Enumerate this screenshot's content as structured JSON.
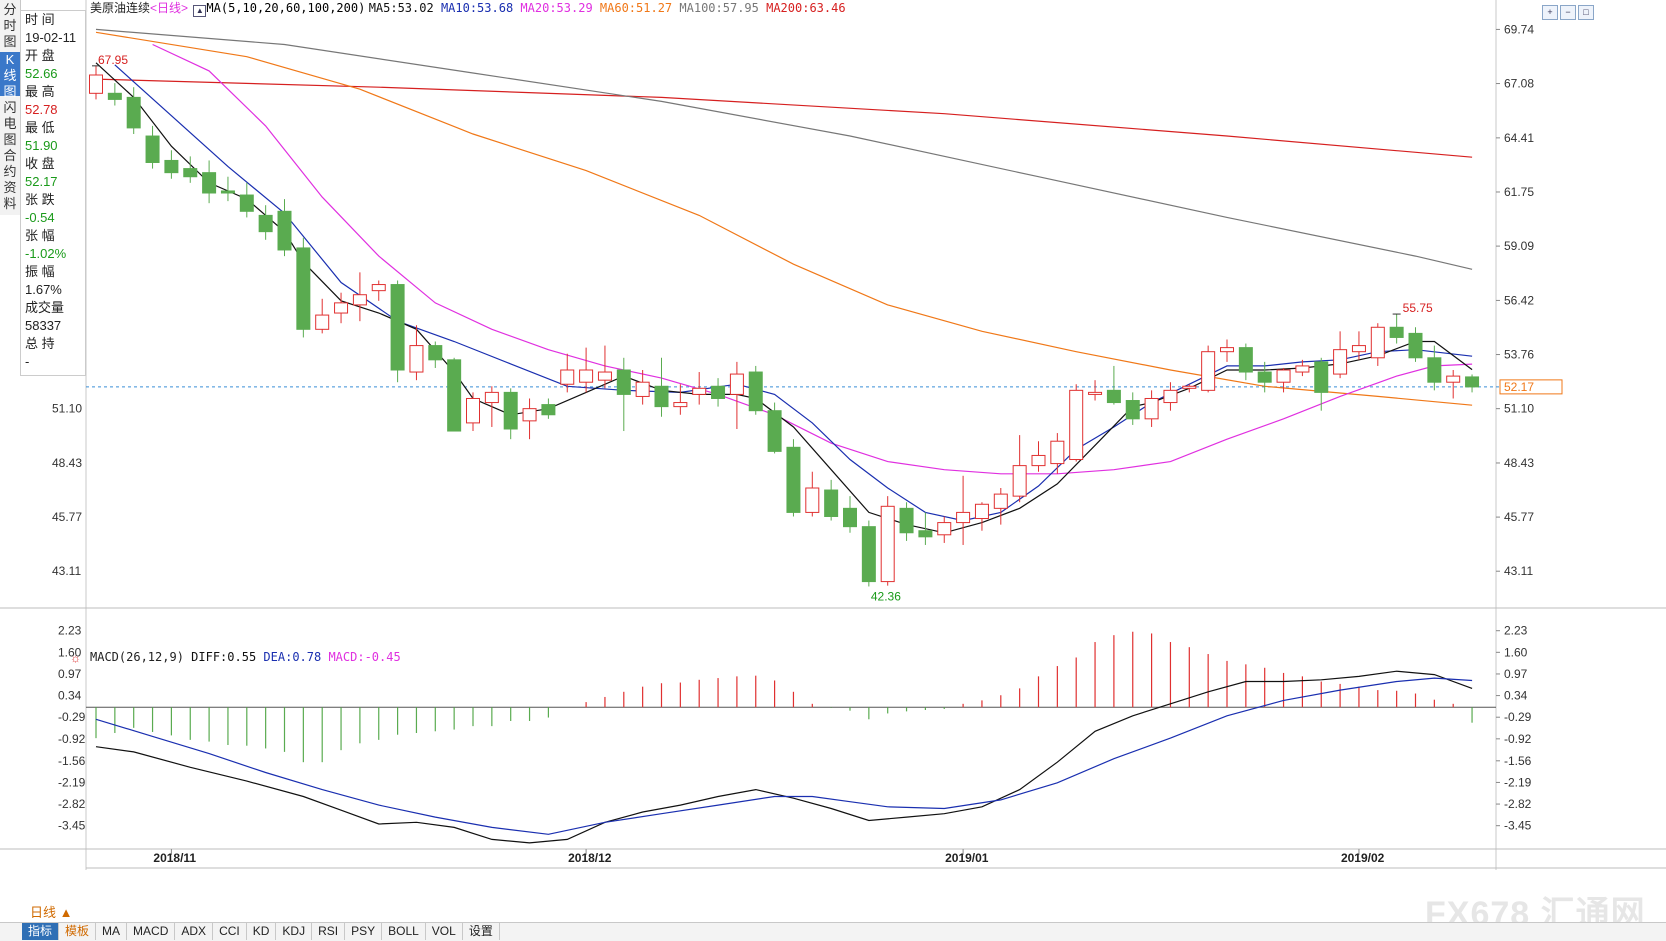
{
  "left_tabs": [
    "分时图",
    "K线图",
    "闪电图",
    "合约资料"
  ],
  "info_panel": [
    {
      "label": "时 间",
      "value": "19-02-11",
      "value_color": "#222222"
    },
    {
      "label": "开 盘",
      "value": "52.66",
      "value_color": "#1a9a1a"
    },
    {
      "label": "最 高",
      "value": "52.78",
      "value_color": "#d62020"
    },
    {
      "label": "最 低",
      "value": "51.90",
      "value_color": "#1a9a1a"
    },
    {
      "label": "收 盘",
      "value": "52.17",
      "value_color": "#1a9a1a"
    },
    {
      "label": "张 跌",
      "value": "-0.54",
      "value_color": "#1a9a1a"
    },
    {
      "label": "张 幅",
      "value": "-1.02%",
      "value_color": "#1a9a1a"
    },
    {
      "label": "振 幅",
      "value": "1.67%",
      "value_color": "#222222"
    },
    {
      "label": "成交量",
      "value": "58337",
      "value_color": "#222222"
    },
    {
      "label": "总 持",
      "value": "-",
      "value_color": "#222222"
    }
  ],
  "header": {
    "symbol": "美原油连续",
    "period": "<日线>",
    "ma_params": "MA(5,10,20,60,100,200)",
    "ma_values": [
      {
        "label": "MA5:53.02",
        "color": "#111111"
      },
      {
        "label": "MA10:53.68",
        "color": "#1a2fb0"
      },
      {
        "label": "MA20:53.29",
        "color": "#e030e0"
      },
      {
        "label": "MA60:51.27",
        "color": "#f07818"
      },
      {
        "label": "MA100:57.95",
        "color": "#777777"
      },
      {
        "label": "MA200:63.46",
        "color": "#d62020"
      }
    ]
  },
  "macd_header": {
    "params": "MACD(26,12,9)",
    "diff": "DIFF:0.55",
    "dea": "DEA:0.78",
    "macd": "MACD:-0.45"
  },
  "colors": {
    "up": "#e03030",
    "down": "#5aab50",
    "ma5": "#111111",
    "ma10": "#1a2fb0",
    "ma20": "#e030e0",
    "ma60": "#f07818",
    "ma100": "#777777",
    "ma200": "#d62020",
    "diff": "#111111",
    "dea": "#1a2fb0",
    "price_line": "#3a8fd8"
  },
  "chart_data": {
    "type": "candlestick",
    "y_axis_ticks": [
      "69.74",
      "67.08",
      "64.41",
      "61.75",
      "59.09",
      "56.42",
      "53.76",
      "51.10",
      "48.43",
      "45.77",
      "43.11"
    ],
    "ylim": [
      41.4,
      70.4
    ],
    "x_month_labels": [
      {
        "label": "2018/11",
        "index": 4
      },
      {
        "label": "2018/12",
        "index": 26
      },
      {
        "label": "2019/01",
        "index": 46
      },
      {
        "label": "2019/02",
        "index": 67
      }
    ],
    "candles": [
      {
        "o": 66.6,
        "h": 67.95,
        "l": 66.3,
        "c": 67.5
      },
      {
        "o": 66.6,
        "h": 67.1,
        "l": 66.0,
        "c": 66.3
      },
      {
        "o": 66.4,
        "h": 66.9,
        "l": 64.6,
        "c": 64.9
      },
      {
        "o": 64.5,
        "h": 65.0,
        "l": 62.9,
        "c": 63.2
      },
      {
        "o": 63.3,
        "h": 63.8,
        "l": 62.4,
        "c": 62.7
      },
      {
        "o": 62.9,
        "h": 63.5,
        "l": 62.2,
        "c": 62.5
      },
      {
        "o": 62.7,
        "h": 63.3,
        "l": 61.2,
        "c": 61.7
      },
      {
        "o": 61.8,
        "h": 62.5,
        "l": 61.3,
        "c": 61.7
      },
      {
        "o": 61.6,
        "h": 62.2,
        "l": 60.5,
        "c": 60.8
      },
      {
        "o": 60.6,
        "h": 61.1,
        "l": 59.4,
        "c": 59.8
      },
      {
        "o": 60.8,
        "h": 61.4,
        "l": 58.6,
        "c": 58.9
      },
      {
        "o": 59.0,
        "h": 59.5,
        "l": 54.6,
        "c": 55.0
      },
      {
        "o": 55.0,
        "h": 56.5,
        "l": 54.8,
        "c": 55.7
      },
      {
        "o": 55.8,
        "h": 56.8,
        "l": 55.3,
        "c": 56.3
      },
      {
        "o": 56.2,
        "h": 57.8,
        "l": 55.4,
        "c": 56.7
      },
      {
        "o": 56.9,
        "h": 57.4,
        "l": 56.4,
        "c": 57.2
      },
      {
        "o": 57.2,
        "h": 57.4,
        "l": 52.4,
        "c": 53.0
      },
      {
        "o": 52.9,
        "h": 55.2,
        "l": 52.5,
        "c": 54.2
      },
      {
        "o": 54.2,
        "h": 54.4,
        "l": 53.1,
        "c": 53.5
      },
      {
        "o": 53.5,
        "h": 53.6,
        "l": 50.0,
        "c": 50.0
      },
      {
        "o": 50.4,
        "h": 51.9,
        "l": 50.0,
        "c": 51.6
      },
      {
        "o": 51.4,
        "h": 52.2,
        "l": 50.2,
        "c": 51.9
      },
      {
        "o": 51.9,
        "h": 52.1,
        "l": 49.6,
        "c": 50.1
      },
      {
        "o": 50.5,
        "h": 51.6,
        "l": 49.6,
        "c": 51.1
      },
      {
        "o": 51.3,
        "h": 51.6,
        "l": 50.6,
        "c": 50.8
      },
      {
        "o": 52.3,
        "h": 53.8,
        "l": 51.9,
        "c": 53.0
      },
      {
        "o": 52.4,
        "h": 54.1,
        "l": 51.9,
        "c": 53.0
      },
      {
        "o": 52.5,
        "h": 54.2,
        "l": 52.1,
        "c": 52.9
      },
      {
        "o": 53.0,
        "h": 53.6,
        "l": 50.0,
        "c": 51.8
      },
      {
        "o": 51.7,
        "h": 53.0,
        "l": 51.3,
        "c": 52.4
      },
      {
        "o": 52.2,
        "h": 53.6,
        "l": 50.7,
        "c": 51.2
      },
      {
        "o": 51.2,
        "h": 52.3,
        "l": 50.8,
        "c": 51.4
      },
      {
        "o": 51.8,
        "h": 52.9,
        "l": 51.3,
        "c": 52.1
      },
      {
        "o": 52.2,
        "h": 52.6,
        "l": 51.2,
        "c": 51.6
      },
      {
        "o": 51.8,
        "h": 53.4,
        "l": 50.1,
        "c": 52.8
      },
      {
        "o": 52.9,
        "h": 53.2,
        "l": 50.8,
        "c": 51.0
      },
      {
        "o": 51.0,
        "h": 51.4,
        "l": 48.9,
        "c": 49.0
      },
      {
        "o": 49.2,
        "h": 49.6,
        "l": 45.8,
        "c": 46.0
      },
      {
        "o": 46.0,
        "h": 48.0,
        "l": 45.8,
        "c": 47.2
      },
      {
        "o": 47.1,
        "h": 47.6,
        "l": 45.6,
        "c": 45.8
      },
      {
        "o": 46.2,
        "h": 46.8,
        "l": 45.0,
        "c": 45.3
      },
      {
        "o": 45.3,
        "h": 45.6,
        "l": 42.36,
        "c": 42.6
      },
      {
        "o": 42.6,
        "h": 46.8,
        "l": 42.4,
        "c": 46.3
      },
      {
        "o": 46.2,
        "h": 46.5,
        "l": 44.6,
        "c": 45.0
      },
      {
        "o": 45.1,
        "h": 46.0,
        "l": 44.4,
        "c": 44.8
      },
      {
        "o": 44.9,
        "h": 45.8,
        "l": 44.5,
        "c": 45.5
      },
      {
        "o": 45.5,
        "h": 47.8,
        "l": 44.4,
        "c": 46.0
      },
      {
        "o": 45.7,
        "h": 46.5,
        "l": 45.1,
        "c": 46.4
      },
      {
        "o": 46.2,
        "h": 47.2,
        "l": 45.4,
        "c": 46.9
      },
      {
        "o": 46.8,
        "h": 49.8,
        "l": 46.5,
        "c": 48.3
      },
      {
        "o": 48.3,
        "h": 49.5,
        "l": 48.0,
        "c": 48.8
      },
      {
        "o": 48.4,
        "h": 49.9,
        "l": 47.9,
        "c": 49.5
      },
      {
        "o": 48.6,
        "h": 52.3,
        "l": 48.5,
        "c": 52.0
      },
      {
        "o": 51.8,
        "h": 52.5,
        "l": 51.5,
        "c": 51.9
      },
      {
        "o": 52.0,
        "h": 53.2,
        "l": 51.3,
        "c": 51.4
      },
      {
        "o": 51.5,
        "h": 51.9,
        "l": 50.3,
        "c": 50.6
      },
      {
        "o": 50.6,
        "h": 52.0,
        "l": 50.2,
        "c": 51.6
      },
      {
        "o": 51.4,
        "h": 52.4,
        "l": 51.0,
        "c": 52.0
      },
      {
        "o": 52.1,
        "h": 52.3,
        "l": 51.9,
        "c": 52.2
      },
      {
        "o": 52.0,
        "h": 54.2,
        "l": 51.9,
        "c": 53.9
      },
      {
        "o": 53.9,
        "h": 54.5,
        "l": 53.4,
        "c": 54.1
      },
      {
        "o": 54.1,
        "h": 54.3,
        "l": 52.5,
        "c": 52.9
      },
      {
        "o": 52.9,
        "h": 53.4,
        "l": 51.9,
        "c": 52.4
      },
      {
        "o": 52.4,
        "h": 53.1,
        "l": 51.9,
        "c": 53.0
      },
      {
        "o": 52.9,
        "h": 53.5,
        "l": 52.7,
        "c": 53.2
      },
      {
        "o": 53.4,
        "h": 53.6,
        "l": 51.0,
        "c": 51.9
      },
      {
        "o": 52.8,
        "h": 54.9,
        "l": 52.6,
        "c": 54.0
      },
      {
        "o": 53.9,
        "h": 54.9,
        "l": 53.5,
        "c": 54.2
      },
      {
        "o": 53.6,
        "h": 55.3,
        "l": 53.2,
        "c": 55.1
      },
      {
        "o": 55.1,
        "h": 55.75,
        "l": 54.3,
        "c": 54.6
      },
      {
        "o": 54.8,
        "h": 55.1,
        "l": 53.4,
        "c": 53.6
      },
      {
        "o": 53.6,
        "h": 54.2,
        "l": 52.0,
        "c": 52.4
      },
      {
        "o": 52.4,
        "h": 53.0,
        "l": 51.6,
        "c": 52.7
      },
      {
        "o": 52.66,
        "h": 52.78,
        "l": 51.9,
        "c": 52.17
      }
    ],
    "high_label": {
      "text": "67.95",
      "index": 0,
      "value": 67.95
    },
    "low_label": {
      "text": "42.36",
      "index": 41,
      "value": 42.36
    },
    "high_label_2": {
      "text": "55.75",
      "index": 69,
      "value": 55.75
    },
    "last_price": "52.17",
    "ma100_points": [
      [
        0,
        69.74
      ],
      [
        10,
        69.0
      ],
      [
        20,
        67.6
      ],
      [
        30,
        66.2
      ],
      [
        40,
        64.5
      ],
      [
        50,
        62.5
      ],
      [
        60,
        60.5
      ],
      [
        70,
        58.6
      ],
      [
        73,
        57.95
      ]
    ],
    "ma200_points": [
      [
        0,
        67.3
      ],
      [
        15,
        66.9
      ],
      [
        30,
        66.4
      ],
      [
        45,
        65.6
      ],
      [
        60,
        64.5
      ],
      [
        73,
        63.46
      ]
    ],
    "ma60_points": [
      [
        0,
        69.6
      ],
      [
        8,
        68.4
      ],
      [
        14,
        66.8
      ],
      [
        20,
        64.6
      ],
      [
        26,
        62.8
      ],
      [
        32,
        60.6
      ],
      [
        37,
        58.2
      ],
      [
        42,
        56.2
      ],
      [
        47,
        54.9
      ],
      [
        52,
        53.9
      ],
      [
        57,
        53.0
      ],
      [
        62,
        52.2
      ],
      [
        68,
        51.7
      ],
      [
        73,
        51.27
      ]
    ],
    "ma20_points": [
      [
        3,
        69.0
      ],
      [
        6,
        67.7
      ],
      [
        9,
        65.0
      ],
      [
        12,
        61.5
      ],
      [
        15,
        58.6
      ],
      [
        18,
        56.3
      ],
      [
        21,
        55.0
      ],
      [
        24,
        54.0
      ],
      [
        27,
        53.2
      ],
      [
        30,
        52.6
      ],
      [
        33,
        51.8
      ],
      [
        36,
        50.8
      ],
      [
        39,
        49.4
      ],
      [
        42,
        48.5
      ],
      [
        45,
        48.1
      ],
      [
        48,
        47.9
      ],
      [
        51,
        47.9
      ],
      [
        54,
        48.1
      ],
      [
        57,
        48.5
      ],
      [
        60,
        49.6
      ],
      [
        63,
        50.6
      ],
      [
        66,
        51.7
      ],
      [
        69,
        52.7
      ],
      [
        71,
        53.2
      ],
      [
        73,
        53.29
      ]
    ],
    "ma10_points": [
      [
        1,
        68.0
      ],
      [
        4,
        65.5
      ],
      [
        7,
        63.0
      ],
      [
        10,
        60.7
      ],
      [
        13,
        57.3
      ],
      [
        16,
        55.4
      ],
      [
        19,
        54.4
      ],
      [
        22,
        53.3
      ],
      [
        25,
        52.2
      ],
      [
        28,
        52.0
      ],
      [
        31,
        51.9
      ],
      [
        34,
        52.3
      ],
      [
        36,
        51.8
      ],
      [
        38,
        50.4
      ],
      [
        40,
        48.6
      ],
      [
        42,
        47.2
      ],
      [
        44,
        46.0
      ],
      [
        46,
        45.6
      ],
      [
        48,
        46.0
      ],
      [
        50,
        47.3
      ],
      [
        52,
        49.1
      ],
      [
        54,
        50.2
      ],
      [
        56,
        51.4
      ],
      [
        58,
        52.3
      ],
      [
        60,
        53.2
      ],
      [
        62,
        53.2
      ],
      [
        64,
        53.4
      ],
      [
        66,
        53.5
      ],
      [
        68,
        53.9
      ],
      [
        70,
        54.0
      ],
      [
        73,
        53.68
      ]
    ],
    "ma5_points": [
      [
        0,
        68.1
      ],
      [
        2,
        66.4
      ],
      [
        4,
        64.0
      ],
      [
        6,
        62.2
      ],
      [
        8,
        61.4
      ],
      [
        10,
        59.8
      ],
      [
        11,
        58.3
      ],
      [
        13,
        56.4
      ],
      [
        15,
        55.8
      ],
      [
        17,
        55.0
      ],
      [
        19,
        52.9
      ],
      [
        20,
        51.6
      ],
      [
        22,
        50.8
      ],
      [
        24,
        51.1
      ],
      [
        26,
        51.9
      ],
      [
        28,
        52.7
      ],
      [
        30,
        52.0
      ],
      [
        32,
        51.8
      ],
      [
        34,
        51.8
      ],
      [
        35,
        51.6
      ],
      [
        37,
        50.2
      ],
      [
        39,
        48.1
      ],
      [
        41,
        46.0
      ],
      [
        43,
        45.4
      ],
      [
        45,
        45.0
      ],
      [
        47,
        45.5
      ],
      [
        49,
        46.2
      ],
      [
        51,
        47.4
      ],
      [
        53,
        49.3
      ],
      [
        55,
        51.2
      ],
      [
        56,
        51.4
      ],
      [
        58,
        52.1
      ],
      [
        60,
        53.0
      ],
      [
        62,
        53.0
      ],
      [
        64,
        53.1
      ],
      [
        66,
        53.3
      ],
      [
        68,
        53.7
      ],
      [
        70,
        54.4
      ],
      [
        71,
        54.4
      ],
      [
        73,
        53.02
      ]
    ],
    "macd_y_ticks": [
      "2.23",
      "1.60",
      "0.97",
      "0.34",
      "-0.29",
      "-0.92",
      "-1.56",
      "-2.19",
      "-2.82",
      "-3.45"
    ],
    "macd_ylim": [
      -4.1,
      2.6
    ],
    "macd_hist": [
      -0.9,
      -0.75,
      -0.6,
      -0.72,
      -0.82,
      -0.95,
      -1.0,
      -1.1,
      -1.12,
      -1.2,
      -1.3,
      -1.6,
      -1.6,
      -1.25,
      -1.05,
      -0.95,
      -0.8,
      -0.75,
      -0.7,
      -0.65,
      -0.55,
      -0.55,
      -0.4,
      -0.4,
      -0.3,
      0.0,
      0.15,
      0.3,
      0.45,
      0.6,
      0.7,
      0.72,
      0.8,
      0.85,
      0.9,
      0.92,
      0.78,
      0.45,
      0.1,
      -0.02,
      -0.1,
      -0.35,
      -0.18,
      -0.12,
      -0.08,
      -0.05,
      0.1,
      0.2,
      0.35,
      0.55,
      0.9,
      1.2,
      1.45,
      1.9,
      2.1,
      2.2,
      2.15,
      1.9,
      1.75,
      1.55,
      1.35,
      1.25,
      1.15,
      1.0,
      0.9,
      0.75,
      0.68,
      0.6,
      0.5,
      0.48,
      0.4,
      0.22,
      0.1,
      -0.45
    ],
    "diff_points": [
      [
        0,
        -1.15
      ],
      [
        2,
        -1.3
      ],
      [
        5,
        -1.75
      ],
      [
        8,
        -2.15
      ],
      [
        11,
        -2.6
      ],
      [
        13,
        -3.0
      ],
      [
        15,
        -3.4
      ],
      [
        17,
        -3.35
      ],
      [
        19,
        -3.5
      ],
      [
        21,
        -3.85
      ],
      [
        23,
        -3.95
      ],
      [
        25,
        -3.85
      ],
      [
        27,
        -3.35
      ],
      [
        29,
        -3.05
      ],
      [
        31,
        -2.85
      ],
      [
        33,
        -2.6
      ],
      [
        35,
        -2.4
      ],
      [
        37,
        -2.65
      ],
      [
        39,
        -2.95
      ],
      [
        41,
        -3.3
      ],
      [
        43,
        -3.2
      ],
      [
        45,
        -3.1
      ],
      [
        47,
        -2.9
      ],
      [
        49,
        -2.4
      ],
      [
        51,
        -1.6
      ],
      [
        53,
        -0.7
      ],
      [
        55,
        -0.25
      ],
      [
        57,
        0.1
      ],
      [
        59,
        0.45
      ],
      [
        61,
        0.75
      ],
      [
        63,
        0.75
      ],
      [
        65,
        0.8
      ],
      [
        67,
        0.9
      ],
      [
        69,
        1.05
      ],
      [
        71,
        0.95
      ],
      [
        73,
        0.55
      ]
    ],
    "dea_points": [
      [
        0,
        -0.35
      ],
      [
        3,
        -0.85
      ],
      [
        6,
        -1.35
      ],
      [
        9,
        -1.9
      ],
      [
        12,
        -2.4
      ],
      [
        15,
        -2.85
      ],
      [
        18,
        -3.2
      ],
      [
        21,
        -3.5
      ],
      [
        24,
        -3.7
      ],
      [
        27,
        -3.35
      ],
      [
        30,
        -3.1
      ],
      [
        33,
        -2.85
      ],
      [
        36,
        -2.6
      ],
      [
        38,
        -2.6
      ],
      [
        40,
        -2.75
      ],
      [
        42,
        -2.9
      ],
      [
        45,
        -2.95
      ],
      [
        48,
        -2.7
      ],
      [
        51,
        -2.2
      ],
      [
        54,
        -1.5
      ],
      [
        57,
        -0.9
      ],
      [
        60,
        -0.25
      ],
      [
        63,
        0.2
      ],
      [
        66,
        0.5
      ],
      [
        69,
        0.75
      ],
      [
        71,
        0.85
      ],
      [
        73,
        0.78
      ]
    ]
  },
  "period_button": "日线 ▲",
  "bottom_tabs": [
    "指标",
    "模板",
    "MA",
    "MACD",
    "ADX",
    "CCI",
    "KD",
    "KDJ",
    "RSI",
    "PSY",
    "BOLL",
    "VOL",
    "设置"
  ],
  "watermark": "FX678 汇通网"
}
